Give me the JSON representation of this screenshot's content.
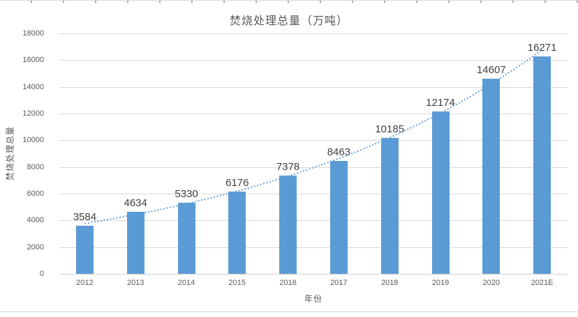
{
  "chart_data": {
    "type": "bar",
    "title": "焚烧处理总量（万吨）",
    "xlabel": "年份",
    "ylabel": "焚烧处理总量",
    "categories": [
      "2012",
      "2013",
      "2014",
      "2015",
      "2016",
      "2017",
      "2018",
      "2019",
      "2020",
      "2021E"
    ],
    "values": [
      3584,
      4634,
      5330,
      6176,
      7378,
      8463,
      10185,
      12174,
      14607,
      16271
    ],
    "data_labels": [
      3584,
      4634,
      5330,
      6176,
      7378,
      8463,
      10185,
      12174,
      14607,
      16271
    ],
    "ylim": [
      0,
      18000
    ],
    "yticks": [
      "0",
      "2000",
      "4000",
      "6000",
      "8000",
      "10000",
      "12000",
      "14000",
      "16000",
      "18000"
    ],
    "grid": "horizontal",
    "legend": "none",
    "trendline": {
      "type": "exponential-fit",
      "style": "dotted"
    }
  },
  "colors": {
    "bar": "#5B9BD5",
    "trendline": "#5B9BD5",
    "gridline": "#D9D9D9",
    "axis_line": "#D0D0D0",
    "axis_text": "#595959",
    "data_label": "#404040",
    "title_text": "#595959",
    "border": "#D9D9D9"
  }
}
